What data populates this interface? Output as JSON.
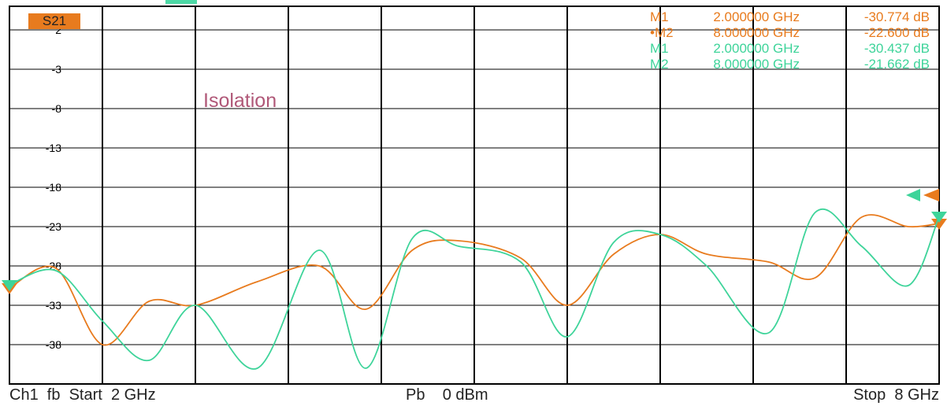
{
  "trace": {
    "label": "S21",
    "color": "#e87b1e"
  },
  "annotation": "Isolation",
  "markers": [
    {
      "name": "M1",
      "freq": "2.000000 GHz",
      "value": "-30.774 dB",
      "color": "#e87b1e",
      "active": false
    },
    {
      "name": "M2",
      "freq": "8.000000 GHz",
      "value": "-22.600 dB",
      "color": "#e87b1e",
      "active": true
    },
    {
      "name": "M1",
      "freq": "2.000000 GHz",
      "value": "-30.437 dB",
      "color": "#3ed49a",
      "active": false
    },
    {
      "name": "M2",
      "freq": "8.000000 GHz",
      "value": "-21.662 dB",
      "color": "#3ed49a",
      "active": false
    }
  ],
  "footer": {
    "channel": "Ch1  fb  Start  2 GHz",
    "power": "Pb    0 dBm",
    "stop": "Stop  8 GHz"
  },
  "chart_data": {
    "type": "line",
    "xlim": [
      2,
      8
    ],
    "ylim": [
      -43,
      5
    ],
    "y_ticks": [
      2,
      -3,
      -8,
      -13,
      -18,
      -23,
      -28,
      -33,
      -38
    ],
    "grid": true,
    "series": [
      {
        "color": "#e87b1e",
        "x": [
          2.0,
          2.3,
          2.6,
          2.9,
          3.2,
          3.6,
          4.0,
          4.3,
          4.6,
          4.9,
          5.3,
          5.6,
          5.9,
          6.2,
          6.5,
          6.9,
          7.2,
          7.5,
          7.8,
          8.0
        ],
        "y": [
          -30.8,
          -28.3,
          -38.0,
          -32.5,
          -33.0,
          -30.0,
          -28.0,
          -33.5,
          -26.0,
          -24.8,
          -27.0,
          -33.0,
          -26.5,
          -24.0,
          -26.5,
          -27.5,
          -29.5,
          -21.8,
          -23.0,
          -22.6
        ]
      },
      {
        "color": "#3ed49a",
        "x": [
          2.0,
          2.3,
          2.6,
          2.9,
          3.2,
          3.6,
          4.0,
          4.3,
          4.6,
          4.9,
          5.3,
          5.6,
          5.9,
          6.2,
          6.5,
          6.9,
          7.2,
          7.5,
          7.8,
          8.0
        ],
        "y": [
          -30.4,
          -28.6,
          -35.0,
          -40.0,
          -33.0,
          -41.0,
          -26.0,
          -41.0,
          -24.5,
          -25.5,
          -27.5,
          -37.0,
          -25.0,
          -24.0,
          -28.0,
          -36.5,
          -21.2,
          -25.5,
          -30.5,
          -21.7
        ]
      }
    ]
  }
}
